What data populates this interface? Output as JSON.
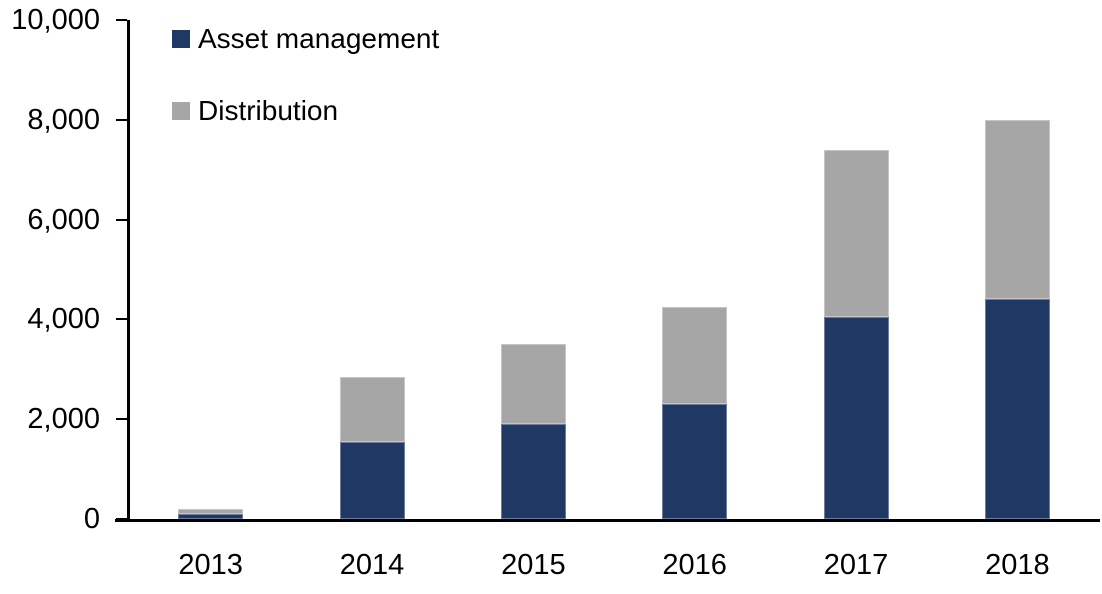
{
  "chart_data": {
    "type": "bar",
    "stacked": true,
    "title": "",
    "xlabel": "",
    "ylabel": "",
    "categories": [
      "2013",
      "2014",
      "2015",
      "2016",
      "2017",
      "2018"
    ],
    "series": [
      {
        "name": "Asset management",
        "color": "#203864",
        "values": [
          100,
          1550,
          1900,
          2300,
          4050,
          4400
        ]
      },
      {
        "name": "Distribution",
        "color": "#A6A6A6",
        "values": [
          100,
          1300,
          1600,
          1950,
          3350,
          3600
        ]
      }
    ],
    "y_axis": {
      "min": 0,
      "max": 10000,
      "tick_interval": 2000,
      "tick_labels": [
        "0",
        "2,000",
        "4,000",
        "6,000",
        "8,000",
        "10,000"
      ]
    },
    "ylim": [
      0,
      10000
    ],
    "grid": false,
    "legend_position": "top-left-inside"
  },
  "colors": {
    "axis": "#000000",
    "text": "#000000",
    "background": "#FFFFFF"
  }
}
